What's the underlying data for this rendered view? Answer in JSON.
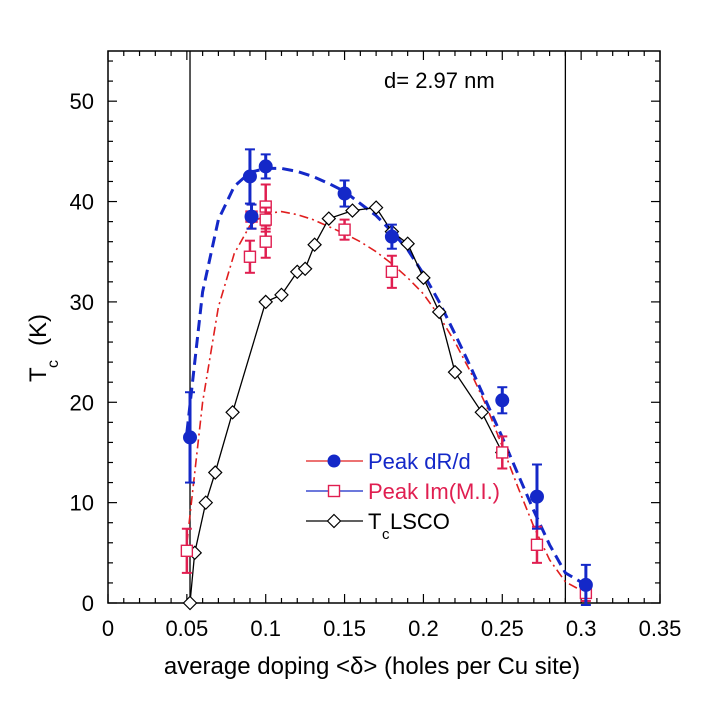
{
  "chart_data": {
    "type": "scatter",
    "title": "",
    "xlabel": "average doping <δ> (holes per Cu site)",
    "ylabel_main": "T",
    "ylabel_sub": "c",
    "ylabel_unit": "(K)",
    "xlim": [
      0,
      0.35
    ],
    "ylim": [
      0,
      55
    ],
    "xticks": [
      0,
      0.05,
      0.1,
      0.15,
      0.2,
      0.25,
      0.3,
      0.35
    ],
    "xtick_labels": [
      "0",
      "0.05",
      "0.1",
      "0.15",
      "0.2",
      "0.25",
      "0.3",
      "0.35"
    ],
    "yticks": [
      0,
      10,
      20,
      30,
      40,
      50
    ],
    "ytick_labels": [
      "0",
      "10",
      "20",
      "30",
      "40",
      "50"
    ],
    "annotation": "d= 2.97 nm",
    "vertical_lines_x": [
      0.052,
      0.29
    ],
    "legend_position": "lower-center",
    "series": [
      {
        "name": "Peak dR/d",
        "marker": "filled-circle",
        "color": "#1428c8",
        "line_color": "#e01e1e",
        "x": [
          0.052,
          0.09,
          0.091,
          0.1,
          0.15,
          0.18,
          0.25,
          0.272,
          0.303
        ],
        "y": [
          16.5,
          42.5,
          38.5,
          43.5,
          40.8,
          36.5,
          20.2,
          10.6,
          1.8
        ],
        "err": [
          4.5,
          2.7,
          1.2,
          1.2,
          1.3,
          1.2,
          1.3,
          3.2,
          2.0
        ]
      },
      {
        "name": "Peak Im(M.I.)",
        "marker": "open-square",
        "color": "#e01e50",
        "line_color": "#1428c8",
        "x": [
          0.05,
          0.09,
          0.091,
          0.1,
          0.1,
          0.1,
          0.15,
          0.18,
          0.25,
          0.272,
          0.303
        ],
        "y": [
          5.2,
          34.5,
          38.5,
          39.5,
          38.2,
          36.0,
          37.2,
          33.0,
          15.0,
          5.8,
          1.0
        ],
        "err": [
          2.2,
          1.6,
          1.2,
          2.2,
          1.2,
          1.6,
          1.0,
          1.6,
          1.6,
          1.8,
          0.8
        ]
      },
      {
        "name": "T_c LSCO",
        "legend_main": "T",
        "legend_sub": "c",
        "legend_rest": " LSCO",
        "marker": "open-diamond",
        "color": "#000000",
        "line_color": "#000000",
        "x": [
          0.052,
          0.055,
          0.062,
          0.068,
          0.079,
          0.1,
          0.11,
          0.12,
          0.125,
          0.131,
          0.14,
          0.155,
          0.17,
          0.18,
          0.19,
          0.2,
          0.21,
          0.22,
          0.237,
          0.25
        ],
        "y": [
          0,
          5,
          10,
          13,
          19,
          30,
          30.7,
          33,
          33.3,
          35.7,
          38.3,
          39.1,
          39.4,
          37,
          35.8,
          32.4,
          29,
          23,
          19,
          15
        ]
      }
    ],
    "fit_curves": [
      {
        "name": "blue dashed fit",
        "color": "#1428c8",
        "x": [
          0.05,
          0.06,
          0.07,
          0.08,
          0.09,
          0.1,
          0.11,
          0.12,
          0.13,
          0.14,
          0.15,
          0.16,
          0.17,
          0.18,
          0.19,
          0.2,
          0.21,
          0.22,
          0.23,
          0.24,
          0.25,
          0.26,
          0.27,
          0.28,
          0.29,
          0.303
        ],
        "y": [
          17,
          31,
          38.2,
          41.5,
          42.9,
          43.3,
          43.3,
          43,
          42.5,
          41.8,
          41,
          39.8,
          38.6,
          37,
          35.2,
          32.8,
          30,
          26.8,
          23.5,
          20,
          16.5,
          12.8,
          9.2,
          5.8,
          3,
          1.8
        ]
      },
      {
        "name": "red dash-dot fit",
        "color": "#e01e1e",
        "x": [
          0.05,
          0.06,
          0.07,
          0.08,
          0.09,
          0.1,
          0.11,
          0.12,
          0.13,
          0.14,
          0.15,
          0.16,
          0.17,
          0.18,
          0.19,
          0.2,
          0.21,
          0.22,
          0.23,
          0.24,
          0.25,
          0.26,
          0.27,
          0.28,
          0.29,
          0.303
        ],
        "y": [
          6,
          20,
          29.5,
          34.8,
          37.6,
          38.8,
          39,
          38.7,
          38.2,
          37.5,
          36.8,
          36,
          35,
          33.8,
          32.4,
          30.8,
          28.6,
          26,
          23,
          19.6,
          15.6,
          11.5,
          7.6,
          4.3,
          2.1,
          1
        ]
      }
    ]
  }
}
